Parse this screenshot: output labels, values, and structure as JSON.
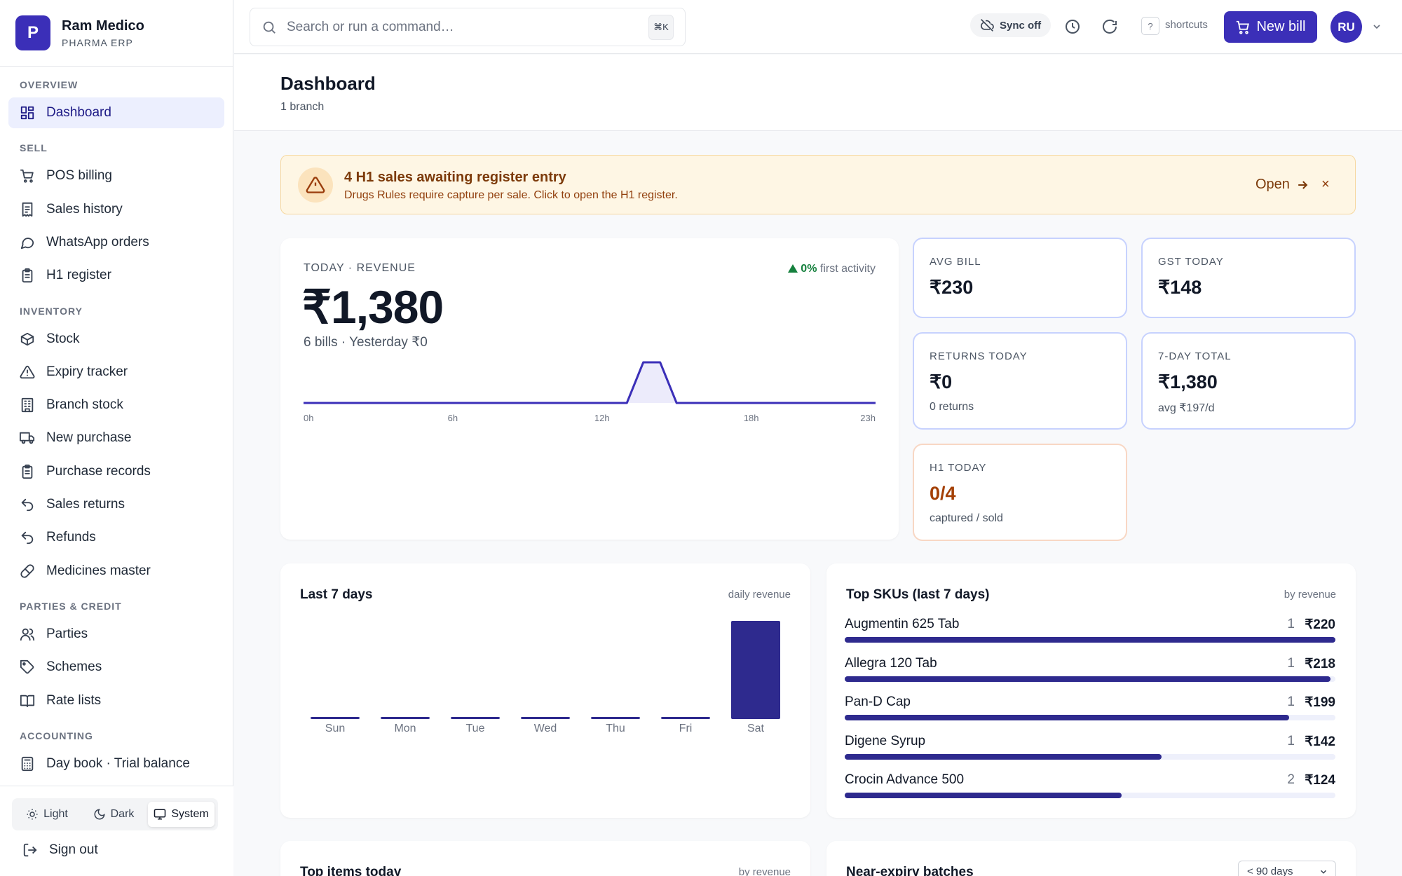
{
  "brand": {
    "logo_letter": "P",
    "name": "Ram Medico",
    "subtitle": "PHARMA ERP"
  },
  "sidebar": {
    "sections": [
      {
        "label": "OVERVIEW",
        "items": [
          {
            "label": "Dashboard",
            "icon": "grid-icon",
            "active": true
          }
        ]
      },
      {
        "label": "SELL",
        "items": [
          {
            "label": "POS billing",
            "icon": "cart-icon"
          },
          {
            "label": "Sales history",
            "icon": "receipt-icon"
          },
          {
            "label": "WhatsApp orders",
            "icon": "chat-bubble-icon"
          },
          {
            "label": "H1 register",
            "icon": "clipboard-icon"
          }
        ]
      },
      {
        "label": "INVENTORY",
        "items": [
          {
            "label": "Stock",
            "icon": "box-icon"
          },
          {
            "label": "Expiry tracker",
            "icon": "warning-icon"
          },
          {
            "label": "Branch stock",
            "icon": "building-icon"
          },
          {
            "label": "New purchase",
            "icon": "truck-icon"
          },
          {
            "label": "Purchase records",
            "icon": "clipboard-icon"
          },
          {
            "label": "Sales returns",
            "icon": "undo-icon"
          },
          {
            "label": "Refunds",
            "icon": "undo-icon"
          },
          {
            "label": "Medicines master",
            "icon": "pill-icon"
          }
        ]
      },
      {
        "label": "PARTIES & CREDIT",
        "items": [
          {
            "label": "Parties",
            "icon": "users-icon"
          },
          {
            "label": "Schemes",
            "icon": "tag-icon"
          },
          {
            "label": "Rate lists",
            "icon": "book-icon"
          }
        ]
      },
      {
        "label": "ACCOUNTING",
        "items": [
          {
            "label": "Day book · Trial balance",
            "icon": "calculator-icon"
          }
        ]
      }
    ],
    "theme": {
      "light": "Light",
      "dark": "Dark",
      "system": "System",
      "selected": "System"
    },
    "signout": "Sign out"
  },
  "topbar": {
    "search_placeholder": "Search or run a command…",
    "search_shortcut": "⌘K",
    "sync_label": "Sync off",
    "help_key": "?",
    "shortcuts_label": "shortcuts",
    "new_bill_label": "New bill",
    "avatar_initials": "RU"
  },
  "page": {
    "title": "Dashboard",
    "subtitle": "1 branch"
  },
  "alert": {
    "title": "4 H1 sales awaiting register entry",
    "message": "Drugs Rules require capture per sale. Click to open the H1 register.",
    "action": "Open",
    "close": "×"
  },
  "revenue": {
    "label": "TODAY · REVENUE",
    "trend_value": "0%",
    "trend_text": "first activity",
    "value": "₹1,380",
    "subtitle": "6 bills · Yesterday ₹0",
    "accent": "#3b2fb8"
  },
  "stats": [
    {
      "label": "AVG BILL",
      "value": "₹230",
      "sub": ""
    },
    {
      "label": "GST TODAY",
      "value": "₹148",
      "sub": ""
    },
    {
      "label": "RETURNS TODAY",
      "value": "₹0",
      "sub": "0 returns"
    },
    {
      "label": "7-DAY TOTAL",
      "value": "₹1,380",
      "sub": "avg ₹197/d"
    },
    {
      "label": "H1 TODAY",
      "value": "0/4",
      "sub": "captured / sold"
    }
  ],
  "last7": {
    "title": "Last 7 days",
    "hint": "daily revenue"
  },
  "topsku": {
    "title": "Top SKUs (last 7 days)",
    "hint": "by revenue",
    "rows": [
      {
        "name": "Augmentin 625 Tab",
        "qty": "1",
        "amount": "₹220",
        "share": 1.0
      },
      {
        "name": "Allegra 120 Tab",
        "qty": "1",
        "amount": "₹218",
        "share": 0.99
      },
      {
        "name": "Pan-D Cap",
        "qty": "1",
        "amount": "₹199",
        "share": 0.905
      },
      {
        "name": "Digene Syrup",
        "qty": "1",
        "amount": "₹142",
        "share": 0.645
      },
      {
        "name": "Crocin Advance 500",
        "qty": "2",
        "amount": "₹124",
        "share": 0.564
      }
    ]
  },
  "bottom": {
    "top_items_title": "Top items today",
    "top_items_hint": "by revenue",
    "near_expiry_title": "Near-expiry batches",
    "near_expiry_filter": "< 90 days"
  },
  "chart_data": [
    {
      "type": "area",
      "x": [
        0,
        1,
        2,
        3,
        4,
        5,
        6,
        7,
        8,
        9,
        10,
        11,
        12,
        13,
        14,
        15,
        16,
        17,
        18,
        19,
        20,
        21,
        22,
        23
      ],
      "values": [
        0,
        0,
        0,
        0,
        0,
        0,
        0,
        0,
        0,
        0,
        0,
        0,
        0,
        0,
        1380,
        0,
        0,
        0,
        0,
        0,
        0,
        0,
        0,
        0
      ],
      "tick_labels": [
        "0h",
        "6h",
        "12h",
        "18h",
        "23h"
      ],
      "tick_positions": [
        0,
        6,
        12,
        18,
        23
      ],
      "grid": false
    },
    {
      "type": "bar",
      "categories": [
        "Sun",
        "Mon",
        "Tue",
        "Wed",
        "Thu",
        "Fri",
        "Sat"
      ],
      "values": [
        0,
        0,
        0,
        0,
        0,
        0,
        1380
      ],
      "grid": false
    }
  ]
}
